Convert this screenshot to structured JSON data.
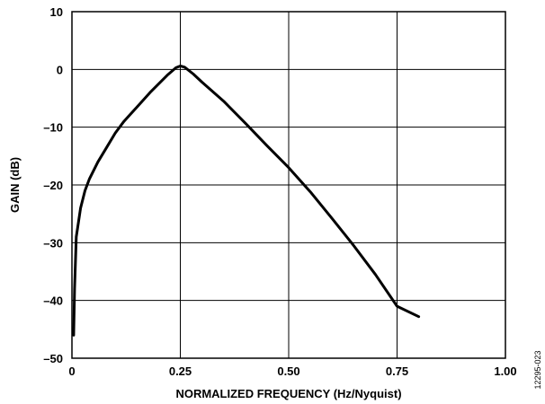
{
  "chart_data": {
    "type": "line",
    "xlabel": "NORMALIZED FREQUENCY (Hz/Nyquist)",
    "ylabel": "GAIN (dB)",
    "xlim": [
      0,
      1.0
    ],
    "ylim": [
      -50,
      10
    ],
    "x_ticks": [
      "0",
      "0.25",
      "0.50",
      "0.75",
      "1.00"
    ],
    "y_ticks": [
      "10",
      "0",
      "–10",
      "–20",
      "–30",
      "–40",
      "–50"
    ],
    "grid": true,
    "series": [
      {
        "color": "#000000",
        "x": [
          0.004,
          0.006,
          0.01,
          0.015,
          0.02,
          0.03,
          0.04,
          0.06,
          0.08,
          0.1,
          0.12,
          0.15,
          0.18,
          0.2,
          0.22,
          0.24,
          0.25,
          0.26,
          0.28,
          0.3,
          0.35,
          0.4,
          0.45,
          0.5,
          0.55,
          0.6,
          0.65,
          0.7,
          0.75,
          0.8
        ],
        "y": [
          -46,
          -38,
          -29,
          -26.5,
          -24,
          -21,
          -19,
          -16,
          -13.5,
          -11,
          -9,
          -6.5,
          -4,
          -2.5,
          -1,
          0.3,
          0.6,
          0.4,
          -0.8,
          -2.2,
          -5.5,
          -9.3,
          -13.2,
          -17,
          -21.2,
          -25.8,
          -30.5,
          -35.5,
          -41,
          -42.8
        ]
      }
    ]
  },
  "figure_id": "12295-023"
}
